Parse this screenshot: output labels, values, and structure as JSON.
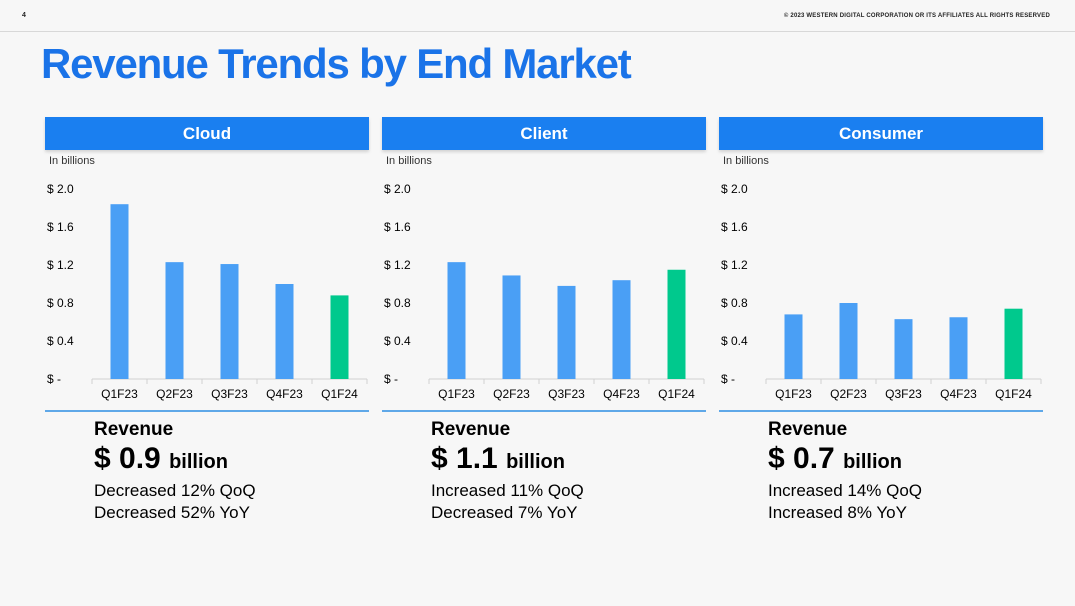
{
  "slide": {
    "page_number": "4",
    "copyright": "© 2023 WESTERN DIGITAL CORPORATION OR ITS AFFILIATES  ALL RIGHTS RESERVED",
    "title": "Revenue Trends by End Market"
  },
  "colors": {
    "accent": "#1a7ff0",
    "title": "#1a73e8",
    "bar_blue": "#4a9ff5",
    "bar_green": "#00c98d"
  },
  "panels": [
    {
      "header": "Cloud",
      "units": "In billions",
      "revenue_label": "Revenue",
      "revenue_value": "$ 0.9",
      "revenue_unit": "billion",
      "stat_1": "Decreased 12% QoQ",
      "stat_2": "Decreased 52% YoY"
    },
    {
      "header": "Client",
      "units": "In billions",
      "revenue_label": "Revenue",
      "revenue_value": "$ 1.1",
      "revenue_unit": "billion",
      "stat_1": "Increased 11% QoQ",
      "stat_2": "Decreased 7% YoY"
    },
    {
      "header": "Consumer",
      "units": "In billions",
      "revenue_label": "Revenue",
      "revenue_value": "$ 0.7",
      "revenue_unit": "billion",
      "stat_1": "Increased 14% QoQ",
      "stat_2": "Increased 8% YoY"
    }
  ],
  "chart_data": [
    {
      "type": "bar",
      "title": "Cloud",
      "ylabel": "In billions",
      "categories": [
        "Q1F23",
        "Q2F23",
        "Q3F23",
        "Q4F23",
        "Q1F24"
      ],
      "values": [
        1.84,
        1.23,
        1.21,
        1.0,
        0.88
      ],
      "highlight_index": 4,
      "ylim": [
        0,
        2.0
      ],
      "yticks": [
        0,
        0.4,
        0.8,
        1.2,
        1.6,
        2.0
      ],
      "ytick_labels": [
        "$ -",
        "$ 0.4",
        "$ 0.8",
        "$ 1.2",
        "$ 1.6",
        "$ 2.0"
      ],
      "grid": false
    },
    {
      "type": "bar",
      "title": "Client",
      "ylabel": "In billions",
      "categories": [
        "Q1F23",
        "Q2F23",
        "Q3F23",
        "Q4F23",
        "Q1F24"
      ],
      "values": [
        1.23,
        1.09,
        0.98,
        1.04,
        1.15
      ],
      "highlight_index": 4,
      "ylim": [
        0,
        2.0
      ],
      "yticks": [
        0,
        0.4,
        0.8,
        1.2,
        1.6,
        2.0
      ],
      "ytick_labels": [
        "$ -",
        "$ 0.4",
        "$ 0.8",
        "$ 1.2",
        "$ 1.6",
        "$ 2.0"
      ],
      "grid": false
    },
    {
      "type": "bar",
      "title": "Consumer",
      "ylabel": "In billions",
      "categories": [
        "Q1F23",
        "Q2F23",
        "Q3F23",
        "Q4F23",
        "Q1F24"
      ],
      "values": [
        0.68,
        0.8,
        0.63,
        0.65,
        0.74
      ],
      "highlight_index": 4,
      "ylim": [
        0,
        2.0
      ],
      "yticks": [
        0,
        0.4,
        0.8,
        1.2,
        1.6,
        2.0
      ],
      "ytick_labels": [
        "$ -",
        "$ 0.4",
        "$ 0.8",
        "$ 1.2",
        "$ 1.6",
        "$ 2.0"
      ],
      "grid": false
    }
  ]
}
